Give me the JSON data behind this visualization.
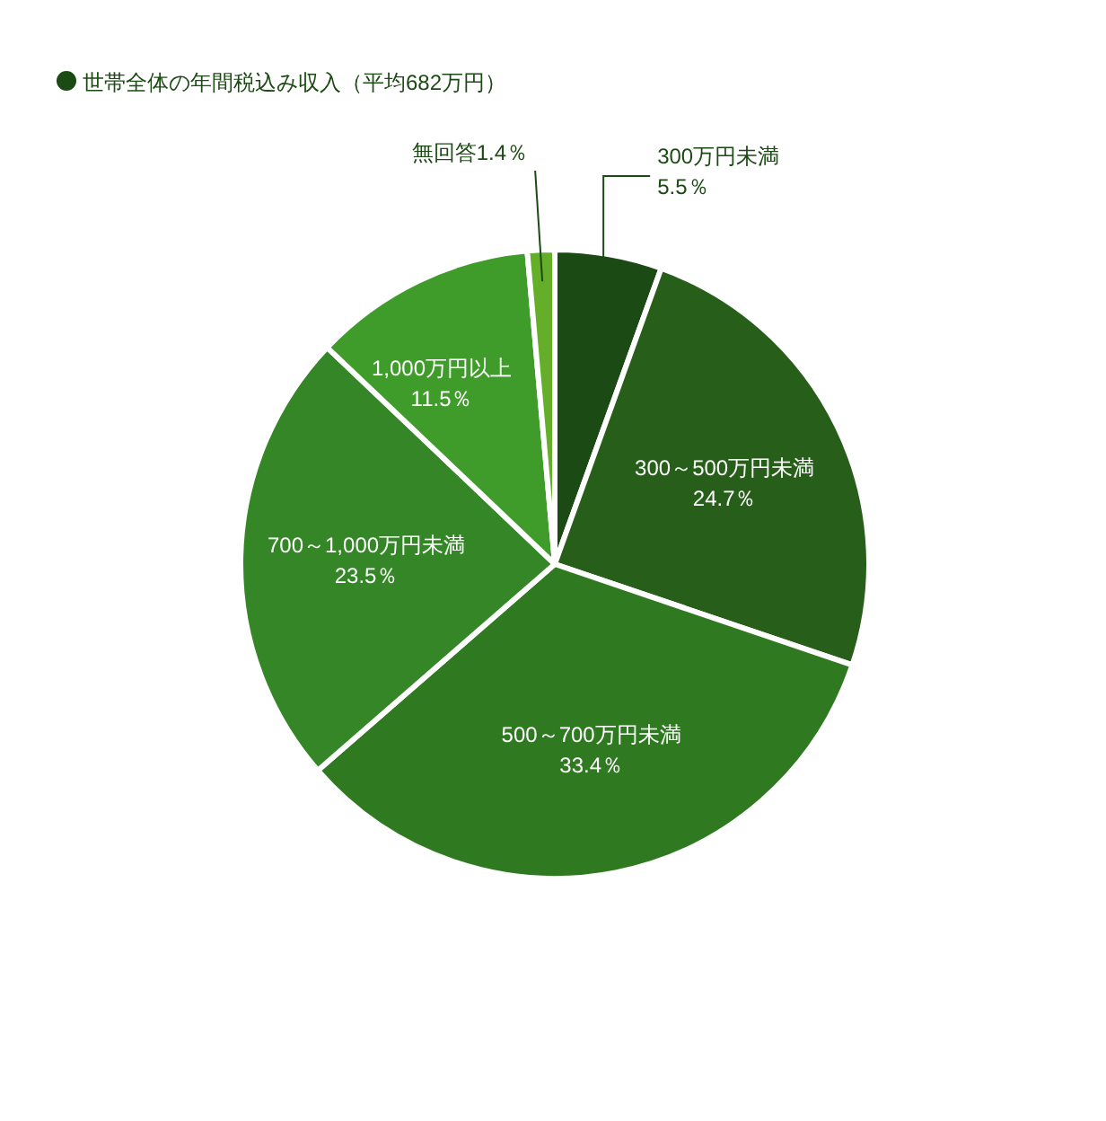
{
  "chart_data": {
    "type": "pie",
    "title": "世帯全体の年間税込み収入（平均682万円）",
    "categories": [
      "300万円未満",
      "300～500万円未満",
      "500～700万円未満",
      "700～1,000万円未満",
      "1,000万円以上",
      "無回答"
    ],
    "values": [
      5.5,
      24.7,
      33.4,
      23.5,
      11.5,
      1.4
    ],
    "value_labels": [
      "5.5％",
      "24.7％",
      "33.4％",
      "23.5％",
      "11.5％",
      "1.4％"
    ],
    "colors": [
      "#1c4a14",
      "#275e1a",
      "#2f7a20",
      "#348626",
      "#3f9c2a",
      "#64ae2a"
    ]
  }
}
